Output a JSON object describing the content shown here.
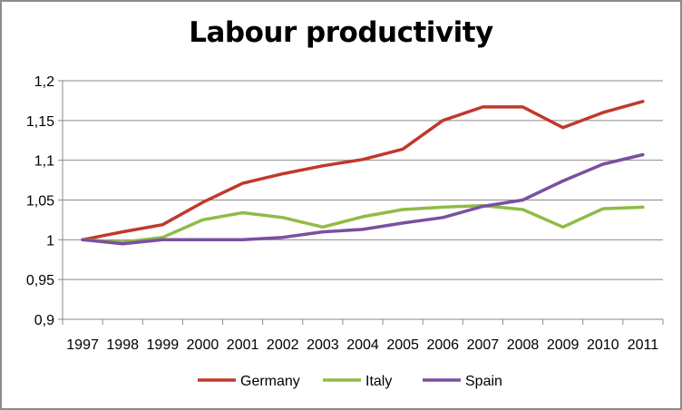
{
  "chart_data": {
    "type": "line",
    "title": "Labour productivity",
    "xlabel": "",
    "ylabel": "",
    "x": [
      "1997",
      "1998",
      "1999",
      "2000",
      "2001",
      "2002",
      "2003",
      "2004",
      "2005",
      "2006",
      "2007",
      "2008",
      "2009",
      "2010",
      "2011"
    ],
    "y_ticks": [
      "0,9",
      "0,95",
      "1",
      "1,05",
      "1,1",
      "1,15",
      "1,2"
    ],
    "ylim": [
      0.9,
      1.2
    ],
    "grid": true,
    "legend": "bottom",
    "series": [
      {
        "name": "Germany",
        "color": "#c0392b",
        "values": [
          1.0,
          1.01,
          1.019,
          1.047,
          1.071,
          1.083,
          1.093,
          1.101,
          1.114,
          1.15,
          1.167,
          1.167,
          1.141,
          1.16,
          1.174
        ]
      },
      {
        "name": "Italy",
        "color": "#8fbc45",
        "values": [
          1.0,
          0.997,
          1.003,
          1.025,
          1.034,
          1.028,
          1.016,
          1.029,
          1.038,
          1.041,
          1.043,
          1.038,
          1.016,
          1.039,
          1.041
        ]
      },
      {
        "name": "Spain",
        "color": "#7b4fa0",
        "values": [
          1.0,
          0.995,
          1.0,
          1.0,
          1.0,
          1.003,
          1.01,
          1.013,
          1.021,
          1.028,
          1.042,
          1.05,
          1.074,
          1.095,
          1.107
        ]
      }
    ]
  }
}
